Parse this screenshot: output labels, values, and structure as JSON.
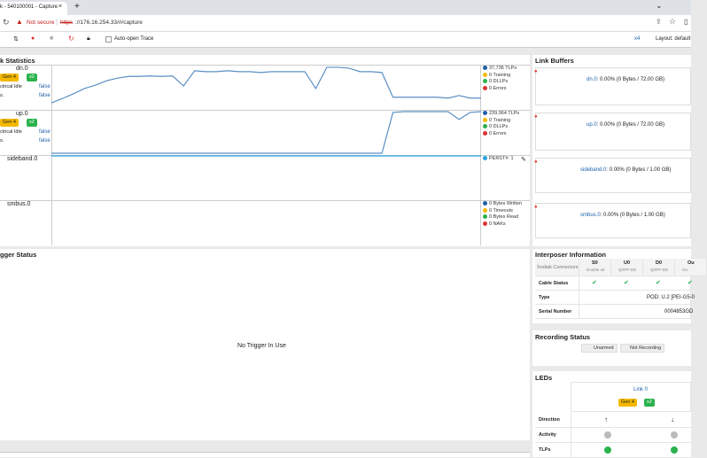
{
  "browser": {
    "tab_title": "k - 540100001 - Capture",
    "new_tab": "+",
    "security": "Not secure",
    "url_scheme": "https",
    "url_rest": "://176.16.254.33/#/capture"
  },
  "toolbar": {
    "auto_open": "Auto-open Trace",
    "zoom": "x4",
    "layout": "Layout: default"
  },
  "link_statistics": {
    "title": "k Statistics",
    "ylim": [
      0,
      100
    ],
    "rows": [
      {
        "name": "dn.0",
        "gen": "Gen 4",
        "width": "x2",
        "labels": [
          "ctrical Idle",
          "s."
        ],
        "flags": [
          "false",
          "false"
        ],
        "legend": [
          "37,736 TLPs",
          "0 Training",
          "0 DLLPs",
          "0 Errors"
        ],
        "trace": [
          14,
          24,
          35,
          47,
          55,
          65,
          71,
          75,
          75,
          76,
          75,
          76,
          53,
          88,
          86,
          86,
          88,
          86,
          86,
          84,
          86,
          86,
          86,
          86,
          47,
          96,
          96,
          94,
          86,
          86,
          84,
          27,
          27,
          27,
          27,
          27,
          25,
          31,
          25,
          25
        ]
      },
      {
        "name": "up.0",
        "gen": "Gen 4",
        "width": "x2",
        "labels": [
          "ctrical Idle",
          "s."
        ],
        "flags": [
          "false",
          "false"
        ],
        "legend": [
          "239,964 TLPs",
          "0 Training",
          "0 DLLPs",
          "0 Errors"
        ],
        "trace": [
          2,
          2,
          2,
          2,
          2,
          2,
          2,
          2,
          2,
          2,
          2,
          2,
          2,
          2,
          2,
          2,
          2,
          2,
          2,
          2,
          2,
          2,
          2,
          2,
          2,
          2,
          2,
          2,
          2,
          2,
          2,
          96,
          98,
          98,
          98,
          98,
          98,
          80,
          96,
          98
        ]
      },
      {
        "name": "sideband.0",
        "legend": [
          "PERST#: 1"
        ]
      },
      {
        "name": "smbus.0",
        "legend": [
          "0 Bytes Written",
          "0 Timeouts",
          "0 Bytes Read",
          "0 NAKs"
        ]
      }
    ]
  },
  "trigger_status": {
    "title": "gger Status",
    "message": "No Trigger In Use"
  },
  "link_buffers": {
    "title": "Link Buffers",
    "items": [
      {
        "name": "dn.0",
        "detail": ": 0.00% (0 Bytes / 72.00 GB)"
      },
      {
        "name": "up.0",
        "detail": ": 0.00% (0 Bytes / 72.00 GB)"
      },
      {
        "name": "sideband.0",
        "detail": ": 0.00% (0 Bytes / 1.00 GB)"
      },
      {
        "name": "smbus.0",
        "detail": ": 0.00% (0 Bytes / 1.00 GB)"
      }
    ]
  },
  "interposer": {
    "title": "Interposer Information",
    "corner": "Xodiak Connectors",
    "columns": [
      {
        "name": "S0",
        "sub": "Double x8"
      },
      {
        "name": "U0",
        "sub": "QSFP-DD"
      },
      {
        "name": "D0",
        "sub": "QSFP-DD"
      },
      {
        "name": "Ou",
        "sub": "Ou"
      }
    ],
    "rows": [
      "Cable Status",
      "Type",
      "Serial Number"
    ],
    "type": "POD: U.2 [PEI-G5-0",
    "serial": "0004853GD"
  },
  "recording_status": {
    "title": "Recording Status",
    "armed": "Unarmed",
    "recording": "Not Recording"
  },
  "leds": {
    "title": "LEDs",
    "link": "Link 0",
    "gen": "Gen 4",
    "width": "x2",
    "rows": [
      "Direction",
      "Activity",
      "TLPs"
    ]
  }
}
